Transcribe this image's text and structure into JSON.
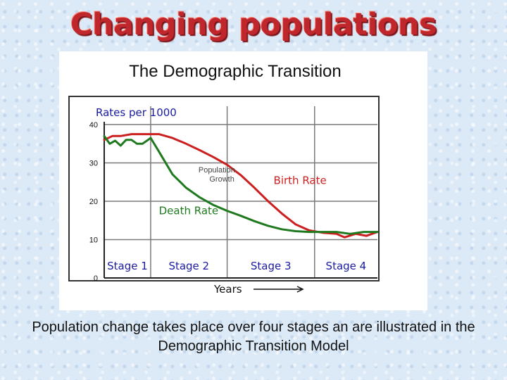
{
  "slide": {
    "title": "Changing populations",
    "caption": "Population change takes place over four stages an are illustrated in the Demographic Transition Model"
  },
  "chart_data": {
    "type": "line",
    "title": "The Demographic Transition",
    "ylabel": "Rates per 1000",
    "xlabel": "Years",
    "ylim": [
      0,
      40
    ],
    "yticks": [
      0,
      10,
      20,
      30,
      40
    ],
    "xlim": [
      0,
      100
    ],
    "grid": true,
    "stages": [
      {
        "label": "Stage 1",
        "start": 0,
        "end": 17
      },
      {
        "label": "Stage 2",
        "start": 17,
        "end": 45
      },
      {
        "label": "Stage 3",
        "start": 45,
        "end": 77
      },
      {
        "label": "Stage 4",
        "start": 77,
        "end": 100
      }
    ],
    "annotations": [
      "Population Growth"
    ],
    "colors": {
      "birth": "#cc1f1f",
      "death": "#1f7a1f",
      "grid": "#7a7a7a",
      "stage_text": "#1a1aa0"
    },
    "series": [
      {
        "name": "Birth Rate",
        "x": [
          0,
          3,
          6,
          10,
          14,
          17,
          20,
          25,
          30,
          35,
          40,
          45,
          50,
          55,
          60,
          65,
          70,
          75,
          80,
          85,
          88,
          92,
          96,
          100
        ],
        "values": [
          36,
          37,
          37,
          37.5,
          37.5,
          37.5,
          37.5,
          36.5,
          35,
          33.3,
          31.5,
          29.5,
          26.8,
          23.5,
          20,
          16.8,
          14,
          12.4,
          11.8,
          11.5,
          10.6,
          11.5,
          11,
          12
        ]
      },
      {
        "name": "Death Rate",
        "x": [
          0,
          2,
          4,
          6,
          8,
          10,
          12,
          14,
          17,
          20,
          25,
          30,
          35,
          40,
          45,
          50,
          55,
          60,
          65,
          70,
          75,
          80,
          85,
          90,
          95,
          100
        ],
        "values": [
          37,
          35,
          35.8,
          34.5,
          36,
          36,
          35,
          35,
          36.5,
          33,
          27,
          23.5,
          21,
          19,
          17.5,
          16.2,
          14.8,
          13.6,
          12.7,
          12.2,
          12,
          12,
          12,
          11.5,
          12,
          12
        ]
      }
    ]
  }
}
